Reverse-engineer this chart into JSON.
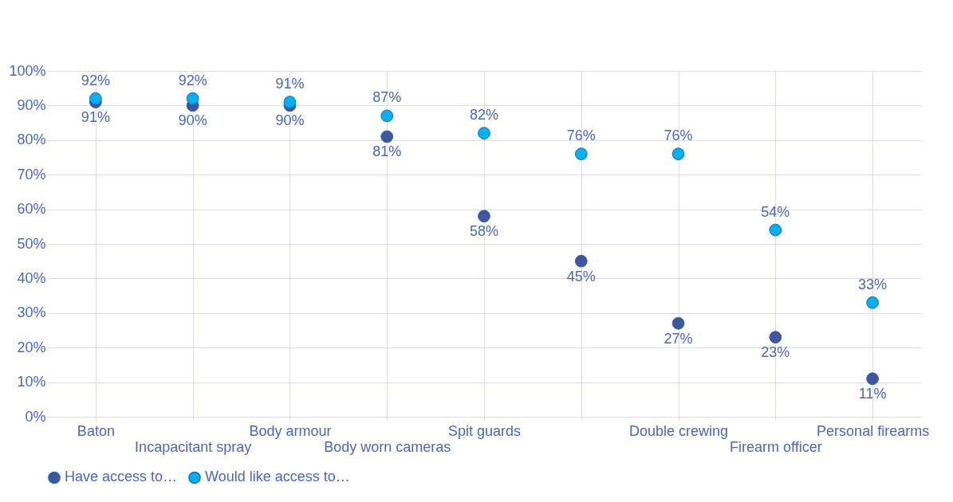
{
  "chart_data": {
    "type": "scatter",
    "categories": [
      "Baton",
      "Incapacitant spray",
      "Body armour",
      "Body worn cameras",
      "Spit guards",
      null,
      "Double crewing",
      "Firearm officer",
      "Personal firearms"
    ],
    "series": [
      {
        "name": "Have access to…",
        "color": "#44549c",
        "values": [
          91,
          90,
          90,
          81,
          58,
          45,
          27,
          23,
          11
        ],
        "value_labels": [
          "91%",
          "90%",
          "90%",
          "81%",
          "58%",
          "45%",
          "27%",
          "23%",
          "11%"
        ]
      },
      {
        "name": "Would like access to…",
        "color": "#00b0f0",
        "values": [
          92,
          92,
          91,
          87,
          82,
          76,
          76,
          54,
          33
        ],
        "value_labels": [
          "92%",
          "92%",
          "91%",
          "87%",
          "82%",
          "76%",
          "76%",
          "54%",
          "33%"
        ]
      }
    ],
    "ylim": [
      0,
      100
    ],
    "yticks": [
      {
        "value": 0,
        "label": "0%"
      },
      {
        "value": 10,
        "label": "10%"
      },
      {
        "value": 20,
        "label": "20%"
      },
      {
        "value": 30,
        "label": "30%"
      },
      {
        "value": 40,
        "label": "40%"
      },
      {
        "value": 50,
        "label": "50%"
      },
      {
        "value": 60,
        "label": "60%"
      },
      {
        "value": 70,
        "label": "70%"
      },
      {
        "value": 80,
        "label": "80%"
      },
      {
        "value": 90,
        "label": "90%"
      },
      {
        "value": 100,
        "label": "100%"
      }
    ],
    "grid": true,
    "legend": "bottom left",
    "marker": "circle"
  }
}
